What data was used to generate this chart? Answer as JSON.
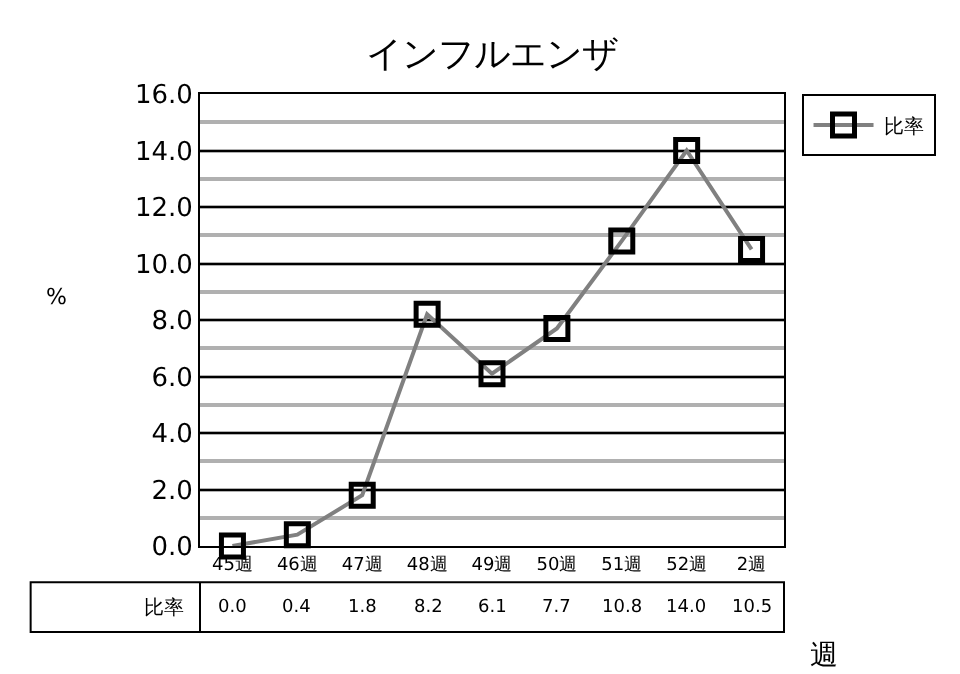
{
  "chart_data": {
    "type": "line",
    "title": "インフルエンザ",
    "xlabel": "週",
    "ylabel": "%",
    "categories": [
      "45週",
      "46週",
      "47週",
      "48週",
      "49週",
      "50週",
      "51週",
      "52週",
      "2週"
    ],
    "series": [
      {
        "name": "比率",
        "color": "#808080",
        "values": [
          0.0,
          0.4,
          1.8,
          8.2,
          6.1,
          7.7,
          10.8,
          14.0,
          10.5
        ],
        "value_labels": [
          "0.0",
          "0.4",
          "1.8",
          "8.2",
          "6.1",
          "7.7",
          "10.8",
          "14.0",
          "10.5"
        ]
      }
    ],
    "ylim": [
      0,
      16
    ],
    "yticks": [
      {
        "value": 0,
        "label": "0.0"
      },
      {
        "value": 2,
        "label": "2.0"
      },
      {
        "value": 4,
        "label": "4.0"
      },
      {
        "value": 6,
        "label": "6.0"
      },
      {
        "value": 8,
        "label": "8.0"
      },
      {
        "value": 10,
        "label": "10.0"
      },
      {
        "value": 12,
        "label": "12.0"
      },
      {
        "value": 14,
        "label": "14.0"
      },
      {
        "value": 16,
        "label": "16.0"
      }
    ],
    "grid": "y",
    "legend": "top right",
    "marker": "square",
    "line_style": "solid"
  }
}
